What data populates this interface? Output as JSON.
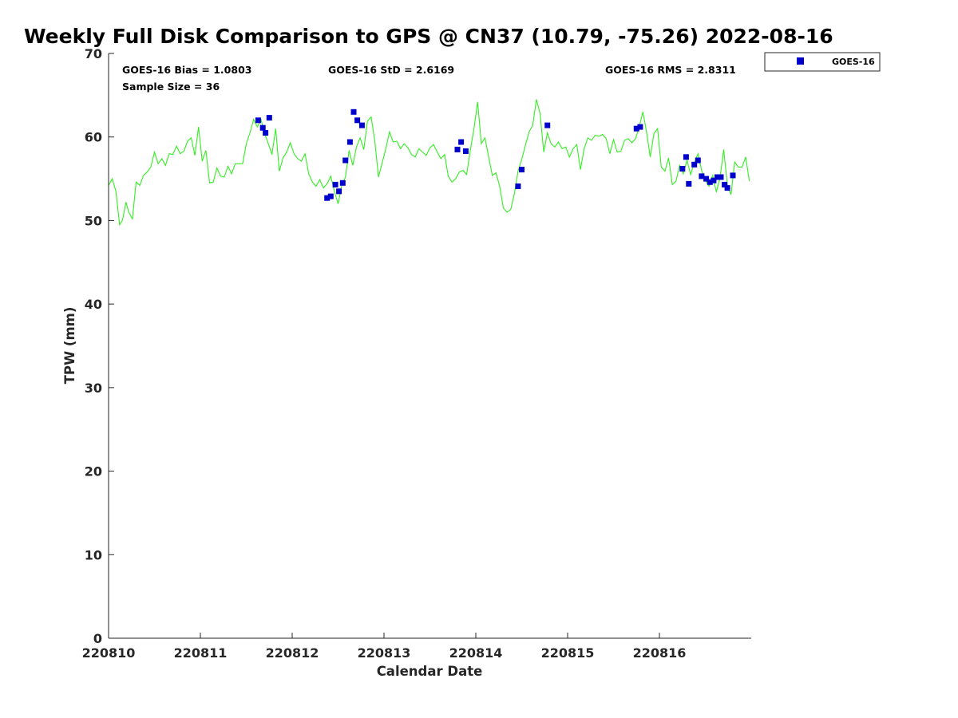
{
  "chart_data": {
    "type": "scatter",
    "title": "Weekly Full Disk Comparison to GPS @ CN37 (10.79, -75.26) 2022-08-16",
    "xlabel": "Calendar Date",
    "ylabel": "TPW (mm)",
    "xlim": [
      0,
      7
    ],
    "ylim": [
      0,
      70
    ],
    "x_ticks": [
      0,
      1,
      2,
      3,
      4,
      5,
      6
    ],
    "x_tick_labels": [
      "220810",
      "220811",
      "220812",
      "220813",
      "220814",
      "220815",
      "220816"
    ],
    "y_ticks": [
      0,
      10,
      20,
      30,
      40,
      50,
      60,
      70
    ],
    "y_tick_labels": [
      "0",
      "10",
      "20",
      "30",
      "40",
      "50",
      "60",
      "70"
    ],
    "x_unit_note": "x values in days since 220810 00Z",
    "stats": {
      "bias": "GOES-16 Bias = 1.0803",
      "std": "GOES-16 StD = 2.6169",
      "rms": "GOES-16 RMS = 2.8311",
      "sample": "Sample Size = 36"
    },
    "legend": {
      "placement": "top-right, outside axes",
      "entries": [
        "GOES-16"
      ]
    },
    "colors": {
      "goes16": "#0000cc",
      "gps_line": "#33ee22"
    },
    "series": [
      {
        "name": "GPS",
        "kind": "line",
        "x": [
          0.0,
          0.04,
          0.08,
          0.12,
          0.15,
          0.19,
          0.22,
          0.26,
          0.3,
          0.34,
          0.38,
          0.42,
          0.46,
          0.5,
          0.54,
          0.58,
          0.62,
          0.66,
          0.7,
          0.74,
          0.78,
          0.82,
          0.86,
          0.9,
          0.94,
          0.98,
          1.02,
          1.06,
          1.1,
          1.14,
          1.18,
          1.22,
          1.26,
          1.3,
          1.34,
          1.38,
          1.42,
          1.46,
          1.5,
          1.54,
          1.58,
          1.62,
          1.66,
          1.7,
          1.74,
          1.78,
          1.82,
          1.86,
          1.9,
          1.94,
          1.98,
          2.02,
          2.06,
          2.1,
          2.14,
          2.18,
          2.22,
          2.26,
          2.3,
          2.34,
          2.38,
          2.42,
          2.46,
          2.5,
          2.54,
          2.58,
          2.62,
          2.66,
          2.7,
          2.74,
          2.78,
          2.82,
          2.86,
          2.9,
          2.94,
          2.98,
          3.02,
          3.06,
          3.1,
          3.14,
          3.18,
          3.22,
          3.26,
          3.3,
          3.34,
          3.38,
          3.42,
          3.46,
          3.5,
          3.54,
          3.58,
          3.62,
          3.66,
          3.7,
          3.74,
          3.78,
          3.82,
          3.86,
          3.9,
          3.94,
          3.98,
          4.02,
          4.06,
          4.1,
          4.14,
          4.18,
          4.22,
          4.26,
          4.3,
          4.34,
          4.38,
          4.42,
          4.46,
          4.5,
          4.54,
          4.58,
          4.62,
          4.66,
          4.7,
          4.74,
          4.78,
          4.82,
          4.86,
          4.9,
          4.94,
          4.98,
          5.02,
          5.06,
          5.1,
          5.14,
          5.18,
          5.22,
          5.26,
          5.3,
          5.34,
          5.38,
          5.42,
          5.46,
          5.5,
          5.54,
          5.58,
          5.62,
          5.66,
          5.7,
          5.74,
          5.78,
          5.82,
          5.86,
          5.9,
          5.94,
          5.98,
          6.02,
          6.06,
          6.1,
          6.14,
          6.18,
          6.22,
          6.26,
          6.3,
          6.34,
          6.38,
          6.42,
          6.46,
          6.5,
          6.54,
          6.58,
          6.62,
          6.66,
          6.7,
          6.74,
          6.78,
          6.82,
          6.86,
          6.9,
          6.94,
          6.98
        ],
        "y": [
          54.2,
          55.0,
          53.5,
          49.5,
          50.0,
          52.2,
          51.0,
          50.2,
          54.6,
          54.2,
          55.4,
          55.8,
          56.4,
          58.2,
          56.8,
          57.4,
          56.6,
          58.0,
          57.9,
          58.9,
          58.0,
          58.3,
          59.5,
          59.9,
          57.8,
          61.2,
          57.1,
          58.4,
          54.5,
          54.6,
          56.3,
          55.3,
          55.2,
          56.5,
          55.6,
          56.8,
          56.8,
          56.8,
          59.2,
          60.5,
          62.1,
          61.2,
          62.1,
          60.4,
          59.2,
          57.9,
          61.0,
          55.9,
          57.5,
          58.2,
          59.3,
          58.0,
          57.4,
          57.1,
          58.0,
          55.6,
          54.6,
          54.1,
          54.9,
          53.9,
          54.4,
          55.3,
          53.5,
          52.0,
          54.2,
          55.2,
          58.4,
          56.6,
          58.8,
          59.9,
          58.5,
          61.9,
          62.4,
          59.5,
          55.2,
          56.9,
          58.6,
          60.6,
          59.4,
          59.5,
          58.6,
          59.2,
          58.7,
          57.9,
          57.6,
          58.6,
          58.2,
          57.8,
          58.7,
          59.1,
          58.2,
          57.4,
          57.9,
          55.3,
          54.6,
          55.0,
          55.8,
          56.0,
          55.5,
          58.4,
          61.0,
          64.2,
          59.2,
          59.9,
          57.6,
          55.4,
          55.7,
          54.1,
          51.5,
          51.0,
          51.3,
          53.2,
          55.9,
          57.3,
          59.0,
          60.6,
          61.4,
          64.5,
          62.8,
          58.2,
          60.5,
          59.2,
          58.8,
          59.4,
          58.6,
          58.8,
          57.6,
          58.6,
          59.1,
          56.1,
          58.6,
          59.9,
          59.6,
          60.2,
          60.1,
          60.3,
          59.8,
          58.0,
          59.7,
          58.2,
          58.3,
          59.6,
          59.8,
          59.3,
          59.8,
          61.2,
          63.0,
          60.6,
          57.6,
          60.4,
          61.0,
          56.4,
          55.9,
          57.5,
          54.3,
          54.7,
          56.6,
          55.6,
          57.2,
          55.5,
          56.9,
          58.0,
          56.0,
          54.8,
          54.1,
          55.4,
          53.4,
          55.1,
          58.5,
          54.3,
          53.1,
          57.0,
          56.4,
          56.4,
          57.6,
          54.7
        ]
      },
      {
        "name": "GOES-16",
        "kind": "scatter",
        "x": [
          1.63,
          1.68,
          1.71,
          1.75,
          2.38,
          2.42,
          2.47,
          2.51,
          2.55,
          2.58,
          2.63,
          2.67,
          2.71,
          2.76,
          3.8,
          3.84,
          3.89,
          4.46,
          4.5,
          4.78,
          5.75,
          5.79,
          6.25,
          6.29,
          6.32,
          6.38,
          6.42,
          6.46,
          6.51,
          6.55,
          6.59,
          6.63,
          6.67,
          6.71,
          6.74,
          6.8
        ],
        "y": [
          62.0,
          61.1,
          60.5,
          62.3,
          52.7,
          52.9,
          54.3,
          53.5,
          54.5,
          57.2,
          59.4,
          63.0,
          62.0,
          61.4,
          58.5,
          59.4,
          58.3,
          54.1,
          56.1,
          61.4,
          61.0,
          61.2,
          56.2,
          57.6,
          54.4,
          56.7,
          57.2,
          55.3,
          55.0,
          54.6,
          54.8,
          55.2,
          55.2,
          54.3,
          53.9,
          55.4
        ]
      }
    ]
  }
}
